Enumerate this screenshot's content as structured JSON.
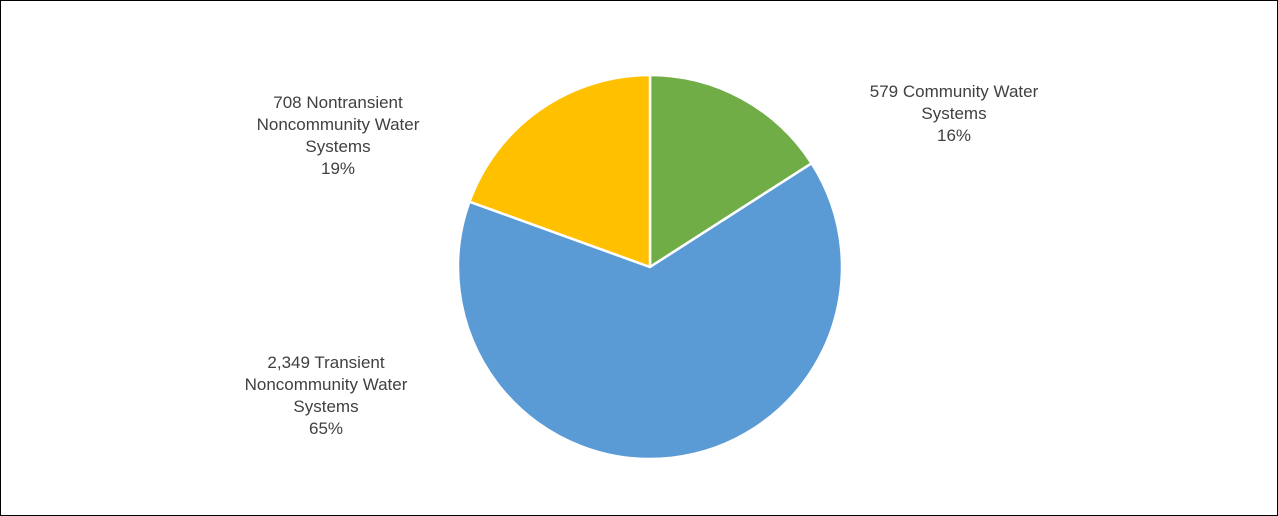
{
  "chart_data": {
    "type": "pie",
    "title": "",
    "start_angle_deg": 0,
    "direction": "clockwise",
    "legend": "none",
    "colors": {
      "border": "#000000",
      "slice_stroke": "#ffffff",
      "label_text": "#404040"
    },
    "slices": [
      {
        "value": 579,
        "percent": 16,
        "color": "#70AD47",
        "label_lines": [
          "579 Community Water",
          "Systems",
          "16%"
        ]
      },
      {
        "value": 2349,
        "percent": 65,
        "color": "#5B9BD5",
        "label_lines": [
          "2,349 Transient",
          "Noncommunity Water",
          "Systems",
          "65%"
        ]
      },
      {
        "value": 708,
        "percent": 19,
        "color": "#FFC000",
        "label_lines": [
          "708 Nontransient",
          "Noncommunity Water",
          "Systems",
          "19%"
        ]
      }
    ]
  }
}
